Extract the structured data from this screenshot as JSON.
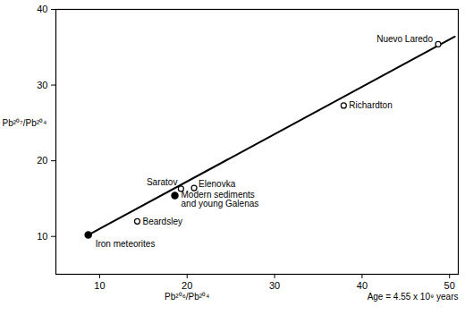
{
  "chart_data": {
    "type": "scatter",
    "x_label": "Pb²⁰⁶/Pb²⁰⁴",
    "y_label": "Pb²⁰⁷/Pb²⁰⁴",
    "annotation": "Age = 4.55 x 10⁹ years",
    "xlim": [
      5,
      51
    ],
    "ylim": [
      5,
      40
    ],
    "xticks": [
      10,
      20,
      30,
      40,
      50
    ],
    "yticks": [
      10,
      20,
      30,
      40
    ],
    "color": "#000000",
    "series": [
      {
        "type": "line",
        "x": [
          8.7,
          50.6
        ],
        "y": [
          10.2,
          36.4
        ]
      },
      {
        "name": "Iron meteorites",
        "type": "scatter",
        "marker": "filled",
        "x": [
          8.7
        ],
        "y": [
          10.2
        ]
      },
      {
        "name": "Beardsley",
        "type": "scatter",
        "marker": "open",
        "x": [
          14.3
        ],
        "y": [
          12.0
        ]
      },
      {
        "name": "Modern sediments\nand young Galenas",
        "type": "scatter",
        "marker": "filled",
        "x": [
          18.6
        ],
        "y": [
          15.4
        ]
      },
      {
        "name": "Saratov",
        "type": "scatter",
        "marker": "open",
        "x": [
          19.3
        ],
        "y": [
          16.3
        ]
      },
      {
        "name": "Elenovka",
        "type": "scatter",
        "marker": "open",
        "x": [
          20.8
        ],
        "y": [
          16.4
        ]
      },
      {
        "name": "Richardton",
        "type": "scatter",
        "marker": "open",
        "x": [
          37.9
        ],
        "y": [
          27.3
        ]
      },
      {
        "name": "Nuevo Laredo",
        "type": "scatter",
        "marker": "open",
        "x": [
          48.7
        ],
        "y": [
          35.4
        ]
      }
    ]
  }
}
